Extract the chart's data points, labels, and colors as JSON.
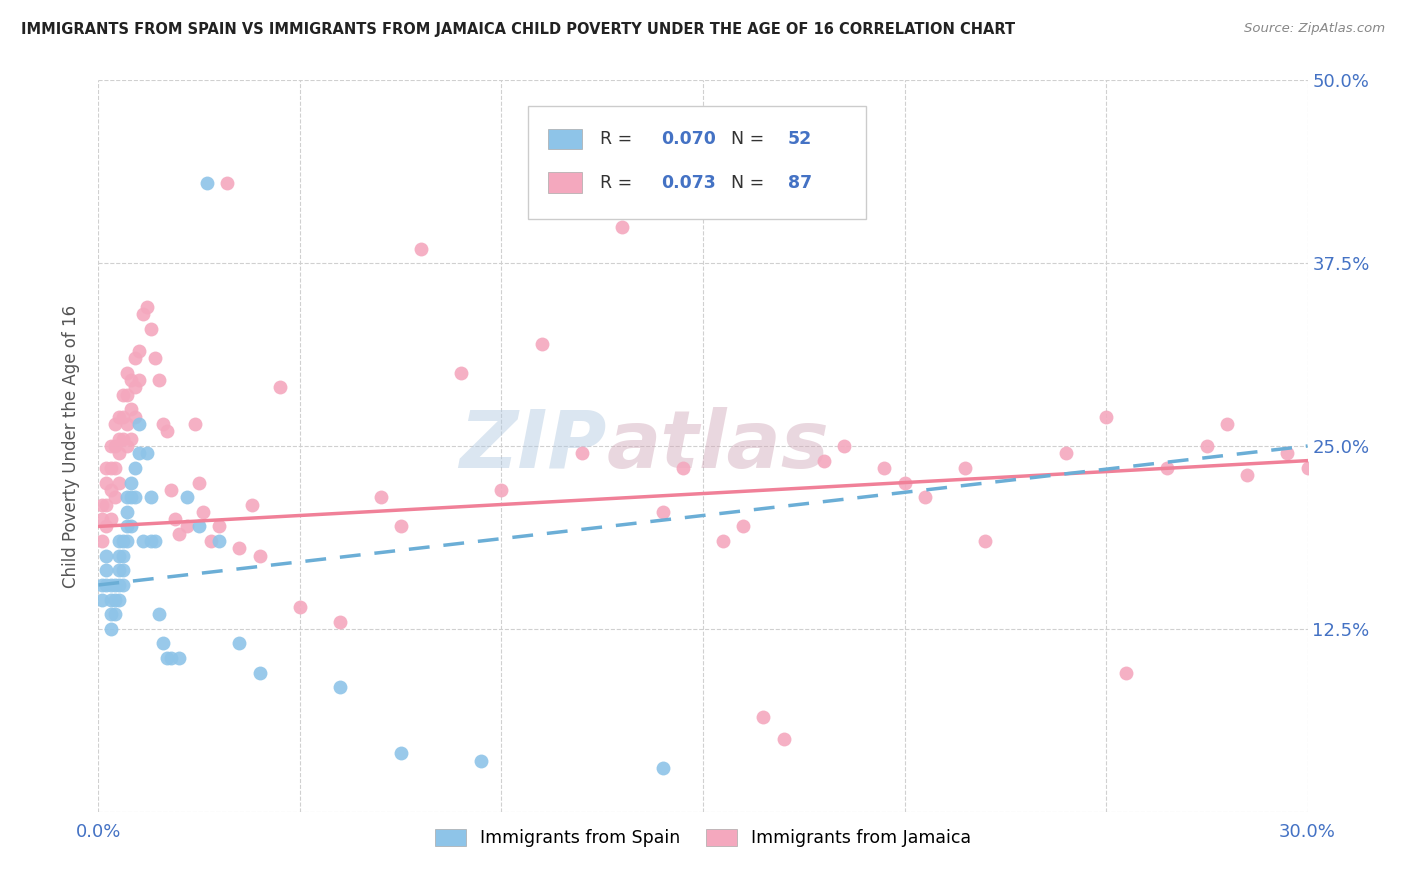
{
  "title": "IMMIGRANTS FROM SPAIN VS IMMIGRANTS FROM JAMAICA CHILD POVERTY UNDER THE AGE OF 16 CORRELATION CHART",
  "source": "Source: ZipAtlas.com",
  "ylabel": "Child Poverty Under the Age of 16",
  "xlim": [
    0.0,
    0.3
  ],
  "ylim": [
    0.0,
    0.5
  ],
  "xtick_positions": [
    0.0,
    0.05,
    0.1,
    0.15,
    0.2,
    0.25,
    0.3
  ],
  "xtick_labels": [
    "0.0%",
    "",
    "",
    "",
    "",
    "",
    "30.0%"
  ],
  "ytick_positions": [
    0.0,
    0.125,
    0.25,
    0.375,
    0.5
  ],
  "ytick_labels": [
    "",
    "12.5%",
    "25.0%",
    "37.5%",
    "50.0%"
  ],
  "watermark_zip": "ZIP",
  "watermark_atlas": "atlas",
  "spain_color": "#8ec4e8",
  "jamaica_color": "#f4a8be",
  "spain_line_color": "#6baed6",
  "jamaica_line_color": "#f08098",
  "legend_label_spain": "Immigrants from Spain",
  "legend_label_jamaica": "Immigrants from Jamaica",
  "spain_R": "0.070",
  "spain_N": "52",
  "jamaica_R": "0.073",
  "jamaica_N": "87",
  "spain_x": [
    0.001,
    0.001,
    0.002,
    0.002,
    0.002,
    0.003,
    0.003,
    0.003,
    0.003,
    0.004,
    0.004,
    0.004,
    0.005,
    0.005,
    0.005,
    0.005,
    0.005,
    0.006,
    0.006,
    0.006,
    0.006,
    0.007,
    0.007,
    0.007,
    0.007,
    0.008,
    0.008,
    0.008,
    0.009,
    0.009,
    0.01,
    0.01,
    0.011,
    0.012,
    0.013,
    0.013,
    0.014,
    0.015,
    0.016,
    0.017,
    0.018,
    0.02,
    0.022,
    0.025,
    0.027,
    0.03,
    0.035,
    0.04,
    0.06,
    0.075,
    0.095,
    0.14
  ],
  "spain_y": [
    0.155,
    0.145,
    0.165,
    0.155,
    0.175,
    0.155,
    0.145,
    0.135,
    0.125,
    0.155,
    0.145,
    0.135,
    0.185,
    0.175,
    0.165,
    0.155,
    0.145,
    0.185,
    0.175,
    0.165,
    0.155,
    0.215,
    0.205,
    0.195,
    0.185,
    0.225,
    0.215,
    0.195,
    0.235,
    0.215,
    0.265,
    0.245,
    0.185,
    0.245,
    0.215,
    0.185,
    0.185,
    0.135,
    0.115,
    0.105,
    0.105,
    0.105,
    0.215,
    0.195,
    0.43,
    0.185,
    0.115,
    0.095,
    0.085,
    0.04,
    0.035,
    0.03
  ],
  "jamaica_x": [
    0.001,
    0.001,
    0.001,
    0.002,
    0.002,
    0.002,
    0.002,
    0.003,
    0.003,
    0.003,
    0.003,
    0.004,
    0.004,
    0.004,
    0.004,
    0.005,
    0.005,
    0.005,
    0.005,
    0.006,
    0.006,
    0.006,
    0.007,
    0.007,
    0.007,
    0.007,
    0.008,
    0.008,
    0.008,
    0.009,
    0.009,
    0.009,
    0.01,
    0.01,
    0.011,
    0.012,
    0.013,
    0.014,
    0.015,
    0.016,
    0.017,
    0.018,
    0.019,
    0.02,
    0.022,
    0.024,
    0.025,
    0.026,
    0.028,
    0.03,
    0.032,
    0.035,
    0.038,
    0.04,
    0.045,
    0.05,
    0.06,
    0.07,
    0.075,
    0.08,
    0.09,
    0.1,
    0.11,
    0.12,
    0.13,
    0.14,
    0.145,
    0.155,
    0.16,
    0.165,
    0.17,
    0.18,
    0.185,
    0.195,
    0.2,
    0.205,
    0.215,
    0.22,
    0.24,
    0.25,
    0.255,
    0.265,
    0.275,
    0.28,
    0.285,
    0.295,
    0.3
  ],
  "jamaica_y": [
    0.21,
    0.2,
    0.185,
    0.235,
    0.225,
    0.21,
    0.195,
    0.25,
    0.235,
    0.22,
    0.2,
    0.265,
    0.25,
    0.235,
    0.215,
    0.27,
    0.255,
    0.245,
    0.225,
    0.285,
    0.27,
    0.255,
    0.3,
    0.285,
    0.265,
    0.25,
    0.295,
    0.275,
    0.255,
    0.31,
    0.29,
    0.27,
    0.315,
    0.295,
    0.34,
    0.345,
    0.33,
    0.31,
    0.295,
    0.265,
    0.26,
    0.22,
    0.2,
    0.19,
    0.195,
    0.265,
    0.225,
    0.205,
    0.185,
    0.195,
    0.43,
    0.18,
    0.21,
    0.175,
    0.29,
    0.14,
    0.13,
    0.215,
    0.195,
    0.385,
    0.3,
    0.22,
    0.32,
    0.245,
    0.4,
    0.205,
    0.235,
    0.185,
    0.195,
    0.065,
    0.05,
    0.24,
    0.25,
    0.235,
    0.225,
    0.215,
    0.235,
    0.185,
    0.245,
    0.27,
    0.095,
    0.235,
    0.25,
    0.265,
    0.23,
    0.245,
    0.235
  ],
  "spain_trend_x0": 0.0,
  "spain_trend_y0": 0.155,
  "spain_trend_x1": 0.3,
  "spain_trend_y1": 0.25,
  "jamaica_trend_x0": 0.0,
  "jamaica_trend_y0": 0.195,
  "jamaica_trend_x1": 0.3,
  "jamaica_trend_y1": 0.24
}
